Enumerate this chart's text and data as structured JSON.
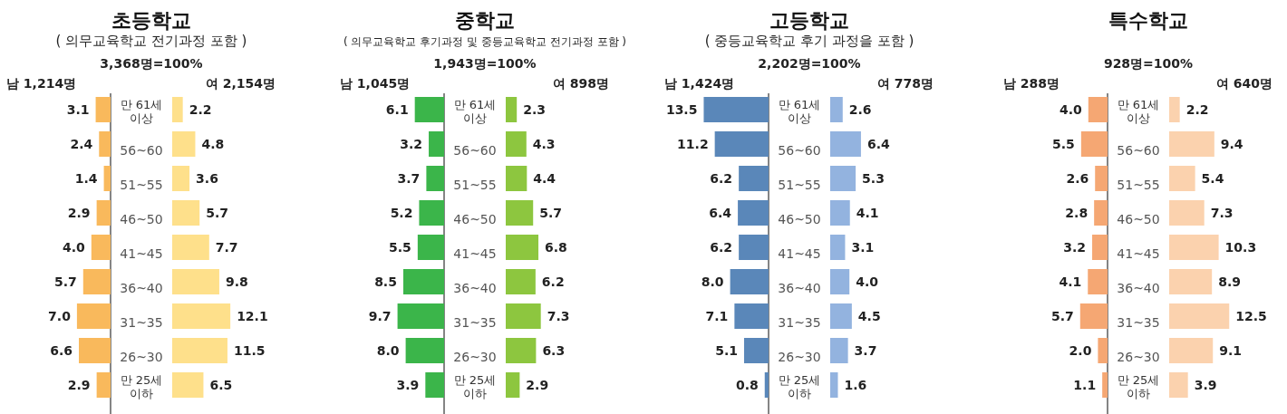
{
  "chart_data": [
    {
      "type": "bar",
      "orientation": "horizontal",
      "title": "초등학교",
      "subtitle": "( 의무교육학교 전기과정 포함 )",
      "annotations": [
        "3,368명=100%"
      ],
      "categories": [
        "만 61세 이상",
        "56~60",
        "51~55",
        "46~50",
        "41~45",
        "36~40",
        "31~35",
        "26~30",
        "만 25세 이하"
      ],
      "series": [
        {
          "name": "남 1,214명",
          "color": "#f9b95c",
          "values": [
            3.1,
            2.4,
            1.4,
            2.9,
            4.0,
            5.7,
            7.0,
            6.6,
            2.9
          ],
          "value_labels": [
            "3.1",
            "2.4",
            "1.4",
            "2.9",
            "4.0",
            "5.7",
            "7.0",
            "6.6",
            "2.9"
          ]
        }
      ]
    },
    {
      "type": "bar",
      "orientation": "horizontal",
      "data_labels": true,
      "categories": [
        null,
        null,
        null,
        null,
        null,
        null,
        null,
        null,
        null
      ],
      "series": [
        {
          "name": "여 2,154명",
          "color": "#fee08b",
          "values": [
            2.2,
            4.8,
            3.6,
            5.7,
            7.7,
            9.8,
            12.1,
            11.5,
            6.5
          ]
        }
      ]
    },
    {
      "type": "bar",
      "orientation": "horizontal",
      "title": "중학교",
      "subtitle": "( 의무교육학교 후기과정 및 중등교육학교 전기과정 포함 )",
      "annotations": [
        "1,943명=100%"
      ],
      "categories": [
        "만 61세 이상",
        "56~60",
        "51~55",
        "46~50",
        "41~45",
        "36~40",
        "31~35",
        "26~30",
        "만 25세 이하"
      ],
      "series": [
        {
          "name": "남 1,045명",
          "color": "#3bb54a",
          "values": [
            6.1,
            3.2,
            3.7,
            5.2,
            5.5,
            8.5,
            9.7,
            8.0,
            3.9
          ],
          "value_labels": [
            "6.1",
            "3.2",
            "3.7",
            "5.2",
            "5.5",
            "8.5",
            "9.7",
            "8.0",
            "3.9"
          ]
        }
      ]
    },
    {
      "type": "bar",
      "orientation": "horizontal",
      "data_labels": true,
      "categories": [
        null,
        null,
        null,
        null,
        null,
        null,
        null,
        null,
        null
      ],
      "series": [
        {
          "name": "여 898명",
          "color": "#8dc63f",
          "values": [
            2.3,
            4.3,
            4.4,
            5.7,
            6.8,
            6.2,
            7.3,
            6.3,
            2.9
          ]
        }
      ]
    },
    {
      "type": "bar",
      "orientation": "horizontal",
      "title": "고등학교",
      "subtitle": "( 중등교육학교 후기 과정을 포함 )",
      "annotations": [
        "2,202명=100%"
      ],
      "categories": [
        "만 61세 이상",
        "56~60",
        "51~55",
        "46~50",
        "41~45",
        "36~40",
        "31~35",
        "26~30",
        "만 25세 이하"
      ],
      "series": [
        {
          "name": "남 1,424명",
          "color": "#5a87b9",
          "values": [
            13.5,
            11.2,
            6.2,
            6.4,
            6.2,
            8.0,
            7.1,
            5.1,
            0.8
          ],
          "value_labels": [
            "13.5",
            "11.2",
            "6.2",
            "6.4",
            "6.2",
            "8.0",
            "7.1",
            "5.1",
            "0.8"
          ]
        }
      ]
    },
    {
      "type": "bar",
      "orientation": "horizontal",
      "categories": [
        null,
        null,
        null,
        null,
        null,
        null,
        null,
        null,
        null
      ],
      "series": [
        {
          "name": "여 778명",
          "color": "#93b3df",
          "values": [
            2.6,
            6.4,
            5.3,
            4.1,
            3.1,
            4.0,
            4.5,
            3.7,
            1.6
          ],
          "value_labels": [
            "2.6",
            "6.4",
            "5.3",
            "4.1",
            "3.1",
            "4.0",
            "4.5",
            "3.7",
            "1.6"
          ]
        }
      ]
    },
    {
      "type": "bar",
      "orientation": "horizontal",
      "title": "특수학교",
      "annotations": [
        "928명=100%"
      ],
      "categories": [
        "만 61세 이상",
        "56~60",
        "51~55",
        "46~50",
        "41~45",
        "36~40",
        "31~35",
        "26~30",
        "만 25세 이하"
      ],
      "series": [
        {
          "name": "남 288명",
          "color": "#f5a773",
          "values": [
            4.0,
            5.5,
            2.6,
            2.8,
            3.2,
            4.1,
            5.7,
            2.0,
            1.1
          ],
          "value_labels": [
            "4.0",
            "5.5",
            "2.6",
            "2.8",
            "3.2",
            "4.1",
            "5.7",
            "2.0",
            "1.1"
          ]
        }
      ]
    },
    {
      "type": "bar",
      "orientation": "horizontal",
      "data_labels": true,
      "categories": [
        null,
        null,
        null,
        null,
        null,
        null,
        null,
        null,
        null
      ],
      "series": [
        {
          "name": "여 640명",
          "color": "#fbd2ae",
          "values": [
            2.2,
            9.4,
            5.4,
            7.3,
            10.3,
            8.9,
            12.5,
            9.1,
            3.9
          ]
        }
      ]
    }
  ]
}
